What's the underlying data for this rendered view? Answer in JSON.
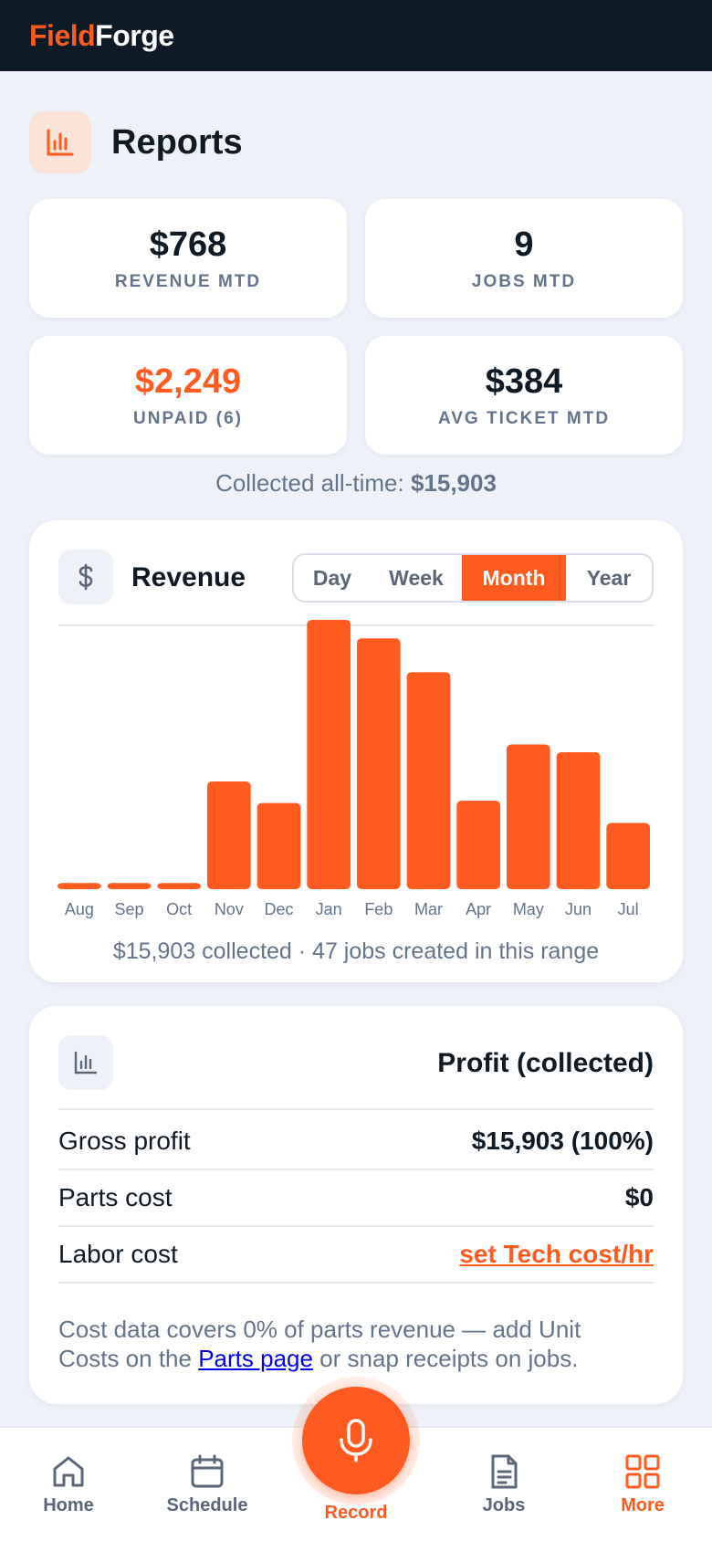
{
  "app": {
    "brand_part1": "Field",
    "brand_part2": "Forge"
  },
  "page": {
    "title": "Reports",
    "icon": "bar-chart-icon"
  },
  "stats": [
    {
      "value": "$768",
      "label": "REVENUE MTD"
    },
    {
      "value": "9",
      "label": "JOBS MTD"
    },
    {
      "value": "$2,249",
      "label": "UNPAID (6)"
    },
    {
      "value": "$384",
      "label": "AVG TICKET MTD"
    }
  ],
  "collected": {
    "label": "Collected all-time:",
    "value": "$15,903"
  },
  "revenue": {
    "title": "Revenue",
    "icon": "dollar-icon",
    "tabs": [
      {
        "label": "Day",
        "active": false
      },
      {
        "label": "Week",
        "active": false
      },
      {
        "label": "Month",
        "active": true
      },
      {
        "label": "Year",
        "active": false
      }
    ],
    "summary": "$15,903 collected · 47 jobs created in this range"
  },
  "chart_data": {
    "type": "bar",
    "categories": [
      "Aug",
      "Sep",
      "Oct",
      "Nov",
      "Dec",
      "Jan",
      "Feb",
      "Mar",
      "Apr",
      "May",
      "Jun",
      "Jul"
    ],
    "values": [
      80,
      80,
      80,
      1400,
      1120,
      3500,
      3260,
      2820,
      1150,
      1880,
      1780,
      860
    ],
    "title": "",
    "xlabel": "",
    "ylabel": "",
    "ylim": [
      0,
      3500
    ],
    "grid": false,
    "color": "#ff5a1f"
  },
  "profit": {
    "title": "Profit (collected)",
    "icon": "bar-chart-icon",
    "rows": [
      {
        "label": "Gross profit",
        "value": "$15,903 (100%)"
      },
      {
        "label": "Parts cost",
        "value": "$0"
      },
      {
        "label": "Labor cost",
        "value": "set Tech cost/hr"
      }
    ],
    "note_part1": "Cost data covers 0% of parts revenue — add Unit Costs on the ",
    "note_link": "Parts page",
    "note_part2": " or snap receipts on jobs."
  },
  "nav": {
    "items": [
      {
        "label": "Home",
        "icon": "home-icon"
      },
      {
        "label": "Schedule",
        "icon": "calendar-icon"
      },
      {
        "label": "Record",
        "icon": "microphone-icon"
      },
      {
        "label": "Jobs",
        "icon": "document-icon"
      },
      {
        "label": "More",
        "icon": "grid-icon"
      }
    ],
    "active": "More"
  },
  "colors": {
    "accent": "#ff5a1f",
    "header": "#0e1a26",
    "background": "#eef2f8"
  }
}
